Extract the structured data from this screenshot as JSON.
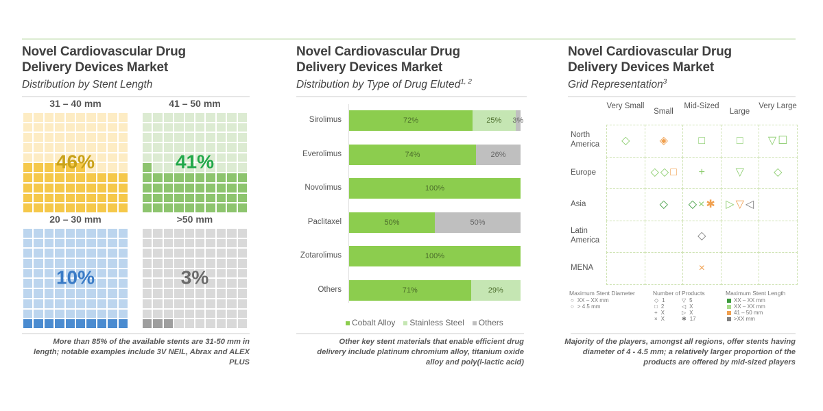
{
  "panels": [
    {
      "title_line1": "Novel Cardiovascular Drug",
      "title_line2": "Delivery Devices Market",
      "subtitle": "Distribution by Stent Length",
      "subtitle_sup": "",
      "footnote": "More than 85% of the available stents are 31-50 mm in length; notable examples include 3V NEIL, Abrax and ALEX PLUS"
    },
    {
      "title_line1": "Novel Cardiovascular Drug",
      "title_line2": "Delivery Devices Market",
      "subtitle": "Distribution by Type of Drug Eluted",
      "subtitle_sup": "1, 2",
      "footnote": "Other key stent materials that enable efficient drug delivery include platinum chromium alloy, titanium oxide alloy and poly(l-lactic acid)"
    },
    {
      "title_line1": "Novel Cardiovascular Drug",
      "title_line2": "Delivery Devices Market",
      "subtitle": "Grid Representation",
      "subtitle_sup": "3",
      "footnote": "Majority of the players, amongst all regions, offer stents having diameter of 4 - 4.5 mm; a relatively larger proportion of the products are offered by mid-sized players"
    }
  ],
  "chart_data": [
    {
      "type": "waffle",
      "title": "Distribution by Stent Length",
      "grid": "10x10",
      "categories": [
        "31 – 40 mm",
        "41 – 50 mm",
        "20 – 30 mm",
        ">50 mm"
      ],
      "values": [
        46,
        41,
        10,
        3
      ],
      "labels": [
        "46%",
        "41%",
        "10%",
        "3%"
      ],
      "colors": {
        "filled": [
          "#f5c84a",
          "#8dc46e",
          "#4a8bd0",
          "#9e9e9e"
        ],
        "empty": [
          "#fdecc4",
          "#dcebd2",
          "#bcd5ee",
          "#d9d9d9"
        ],
        "text": [
          "#c9a21a",
          "#22a84a",
          "#3a7bc6",
          "#6a6a6a"
        ]
      }
    },
    {
      "type": "bar",
      "orientation": "horizontal",
      "stacked": true,
      "title": "Distribution by Type of Drug Eluted",
      "categories": [
        "Sirolimus",
        "Everolimus",
        "Novolimus",
        "Paclitaxel",
        "Zotarolimus",
        "Others"
      ],
      "series": [
        {
          "name": "Cobalt Alloy",
          "color": "#8ccd4e",
          "values": [
            72,
            74,
            100,
            50,
            100,
            71
          ]
        },
        {
          "name": "Stainless Steel",
          "color": "#c5e6b3",
          "values": [
            25,
            0,
            0,
            0,
            0,
            29
          ]
        },
        {
          "name": "Others",
          "color": "#bfbfbf",
          "values": [
            3,
            26,
            0,
            50,
            0,
            0
          ]
        }
      ],
      "xlim": [
        0,
        100
      ],
      "legend": "bottom"
    },
    {
      "type": "table",
      "title": "Grid Representation",
      "columns": [
        "Very Small",
        "Small",
        "Mid-Sized",
        "Large",
        "Very Large"
      ],
      "rows": [
        "North America",
        "Europe",
        "Asia",
        "Latin America",
        "MENA"
      ],
      "cells": [
        [
          [
            {
              "shape": "◇",
              "color": "#8ccd6e"
            }
          ],
          [
            {
              "shape": "◈",
              "color": "#f0a050"
            }
          ],
          [
            {
              "shape": "□",
              "color": "#8ccd6e"
            }
          ],
          [
            {
              "shape": "□",
              "color": "#8ccd6e"
            }
          ],
          [
            {
              "shape": "▽",
              "color": "#8ccd6e"
            },
            {
              "shape": "☐",
              "color": "#8ccd6e"
            }
          ]
        ],
        [
          [],
          [
            {
              "shape": "◇",
              "color": "#8ccd6e"
            },
            {
              "shape": "◇",
              "color": "#8ccd6e"
            },
            {
              "shape": "□",
              "color": "#f0a050"
            }
          ],
          [
            {
              "shape": "+",
              "color": "#8ccd6e"
            }
          ],
          [
            {
              "shape": "▽",
              "color": "#8ccd6e"
            }
          ],
          [
            {
              "shape": "◇",
              "color": "#8ccd6e"
            }
          ]
        ],
        [
          [],
          [
            {
              "shape": "◇",
              "color": "#3c9a3c"
            }
          ],
          [
            {
              "shape": "◇",
              "color": "#3c9a3c"
            },
            {
              "shape": "×",
              "color": "#8ccd6e"
            },
            {
              "shape": "✱",
              "color": "#f0a050"
            }
          ],
          [
            {
              "shape": "▷",
              "color": "#8ccd6e"
            },
            {
              "shape": "▽",
              "color": "#f0a050"
            },
            {
              "shape": "◁",
              "color": "#808080"
            }
          ],
          []
        ],
        [
          [],
          [],
          [
            {
              "shape": "◇",
              "color": "#808080"
            }
          ],
          [],
          []
        ],
        [
          [],
          [],
          [
            {
              "shape": "×",
              "color": "#f0a050"
            }
          ],
          [],
          []
        ]
      ],
      "legend": {
        "diameter_title": "Maximum Stent Diameter",
        "diameter_items": [
          {
            "marker": "○",
            "label": "XX – XX mm"
          },
          {
            "marker": "○",
            "label": "> 4.5 mm"
          }
        ],
        "products_title": "Number of Products",
        "products_items": [
          {
            "marker": "◇",
            "label": "1"
          },
          {
            "marker": "□",
            "label": "2"
          },
          {
            "marker": "+",
            "label": "X"
          },
          {
            "marker": "×",
            "label": "X"
          },
          {
            "marker": "▽",
            "label": "5"
          },
          {
            "marker": "◁",
            "label": "X"
          },
          {
            "marker": "▷",
            "label": "X"
          },
          {
            "marker": "✱",
            "label": "17"
          }
        ],
        "length_title": "Maximum Stent Length",
        "length_items": [
          {
            "color": "#3c9a3c",
            "label": "XX – XX mm"
          },
          {
            "color": "#a8dc8c",
            "label": "XX – XX mm"
          },
          {
            "color": "#f0a050",
            "label": "41 – 50 mm"
          },
          {
            "color": "#808080",
            "label": ">XX mm"
          }
        ]
      }
    }
  ]
}
